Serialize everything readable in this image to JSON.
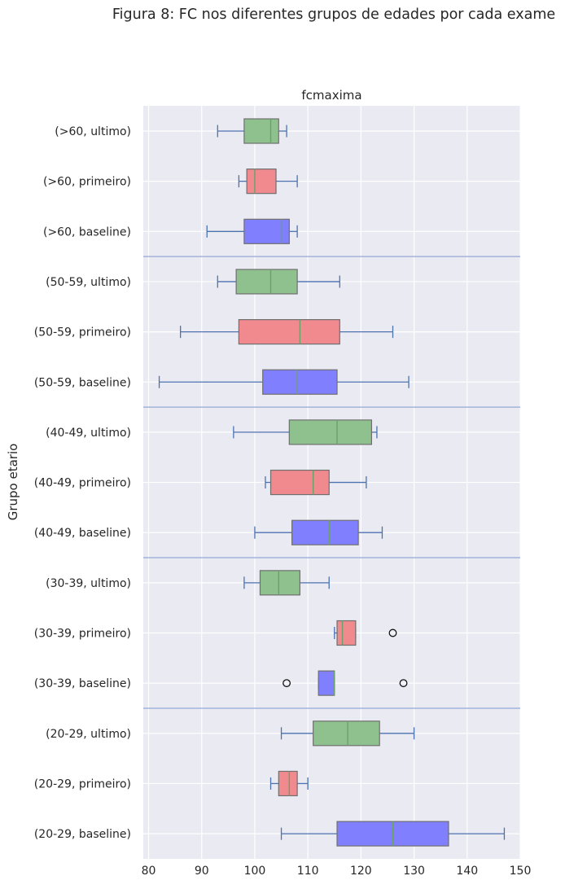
{
  "figure": {
    "suptitle": "Figura 8: FC nos diferentes grupos de edades por cada exame"
  },
  "chart_data": {
    "type": "boxplot",
    "orientation": "horizontal",
    "title": "fcmaxima",
    "xlabel": "",
    "ylabel": "Grupo etario",
    "xlim": [
      79,
      150
    ],
    "xticks": [
      80,
      90,
      100,
      110,
      120,
      130,
      140,
      150
    ],
    "grid": true,
    "colors": {
      "baseline": "#8080ff",
      "primeiro": "#f08a8e",
      "ultimo": "#8fc18f",
      "median": "#6ba06b",
      "whisker": "#4c72b0",
      "separator": "#a3b3d9",
      "background": "#eaeaf2"
    },
    "categories": [
      "(>60, ultimo)",
      "(>60, primeiro)",
      "(>60, baseline)",
      "(50-59, ultimo)",
      "(50-59, primeiro)",
      "(50-59, baseline)",
      "(40-49, ultimo)",
      "(40-49, primeiro)",
      "(40-49, baseline)",
      "(30-39, ultimo)",
      "(30-39, primeiro)",
      "(30-39, baseline)",
      "(20-29, ultimo)",
      "(20-29, primeiro)",
      "(20-29, baseline)"
    ],
    "boxes": [
      {
        "label": "(>60, ultimo)",
        "exam": "ultimo",
        "whislo": 93,
        "q1": 98,
        "med": 103,
        "q3": 104.5,
        "whishi": 106,
        "fliers": []
      },
      {
        "label": "(>60, primeiro)",
        "exam": "primeiro",
        "whislo": 97,
        "q1": 98.5,
        "med": 100,
        "q3": 104,
        "whishi": 108,
        "fliers": []
      },
      {
        "label": "(>60, baseline)",
        "exam": "baseline",
        "whislo": 91,
        "q1": 98,
        "med": 105,
        "q3": 106.5,
        "whishi": 108,
        "fliers": []
      },
      {
        "label": "(50-59, ultimo)",
        "exam": "ultimo",
        "whislo": 93,
        "q1": 96.5,
        "med": 103,
        "q3": 108,
        "whishi": 116,
        "fliers": []
      },
      {
        "label": "(50-59, primeiro)",
        "exam": "primeiro",
        "whislo": 86,
        "q1": 97,
        "med": 108.5,
        "q3": 116,
        "whishi": 126,
        "fliers": []
      },
      {
        "label": "(50-59, baseline)",
        "exam": "baseline",
        "whislo": 82,
        "q1": 101.5,
        "med": 108,
        "q3": 115.5,
        "whishi": 129,
        "fliers": []
      },
      {
        "label": "(40-49, ultimo)",
        "exam": "ultimo",
        "whislo": 96,
        "q1": 106.5,
        "med": 115.5,
        "q3": 122,
        "whishi": 123,
        "fliers": []
      },
      {
        "label": "(40-49, primeiro)",
        "exam": "primeiro",
        "whislo": 102,
        "q1": 103,
        "med": 111,
        "q3": 114,
        "whishi": 121,
        "fliers": []
      },
      {
        "label": "(40-49, baseline)",
        "exam": "baseline",
        "whislo": 100,
        "q1": 107,
        "med": 114,
        "q3": 119.5,
        "whishi": 124,
        "fliers": []
      },
      {
        "label": "(30-39, ultimo)",
        "exam": "ultimo",
        "whislo": 98,
        "q1": 101,
        "med": 104.5,
        "q3": 108.5,
        "whishi": 114,
        "fliers": []
      },
      {
        "label": "(30-39, primeiro)",
        "exam": "primeiro",
        "whislo": 115,
        "q1": 115.5,
        "med": 116.5,
        "q3": 119,
        "whishi": 119,
        "fliers": [
          126
        ]
      },
      {
        "label": "(30-39, baseline)",
        "exam": "baseline",
        "whislo": 112,
        "q1": 112,
        "med": 115,
        "q3": 115,
        "whishi": 115,
        "fliers": [
          106,
          128
        ]
      },
      {
        "label": "(20-29, ultimo)",
        "exam": "ultimo",
        "whislo": 105,
        "q1": 111,
        "med": 117.5,
        "q3": 123.5,
        "whishi": 130,
        "fliers": []
      },
      {
        "label": "(20-29, primeiro)",
        "exam": "primeiro",
        "whislo": 103,
        "q1": 104.5,
        "med": 106.5,
        "q3": 108,
        "whishi": 110,
        "fliers": []
      },
      {
        "label": "(20-29, baseline)",
        "exam": "baseline",
        "whislo": 105,
        "q1": 115.5,
        "med": 126,
        "q3": 136.5,
        "whishi": 147,
        "fliers": []
      }
    ]
  }
}
